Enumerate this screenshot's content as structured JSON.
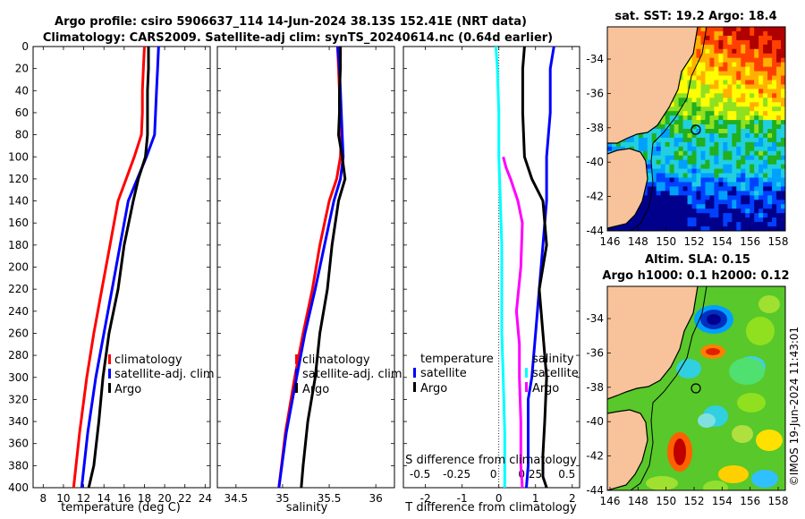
{
  "title": {
    "line1": "Argo profile: csiro 5906637_114 14-Jun-2024 38.13S 152.41E (NRT data)",
    "line2": "Climatology: CARS2009. Satellite-adj clim: synTS_20240614.nc (0.64d earlier)"
  },
  "colors": {
    "climatology": "#ff0000",
    "satellite": "#0000ff",
    "argo": "#000000",
    "t_diff_satellite": "#00ffff",
    "s_diff_argo": "#ff00ff"
  },
  "depth_axis": {
    "ticks": [
      0,
      20,
      40,
      60,
      80,
      100,
      120,
      140,
      160,
      180,
      200,
      220,
      240,
      260,
      280,
      300,
      320,
      340,
      360,
      380,
      400
    ],
    "range": [
      0,
      400
    ]
  },
  "chart_data": [
    {
      "type": "line",
      "id": "temperature",
      "xlabel": "temperature (deg C)",
      "ylabel": "",
      "xlim": [
        7,
        24.5
      ],
      "xticks": [
        8,
        10,
        12,
        14,
        16,
        18,
        20,
        22,
        24
      ],
      "ylim": [
        400,
        0
      ],
      "legend": [
        "climatology",
        "satellite-adj. clim",
        "Argo"
      ],
      "series": [
        {
          "name": "climatology",
          "color": "#ff0000",
          "x": [
            18.0,
            17.9,
            17.8,
            17.8,
            17.7,
            17.0,
            16.2,
            15.4,
            14.6,
            13.8,
            13.0,
            12.3,
            11.6,
            11.0
          ],
          "y": [
            0,
            20,
            40,
            60,
            80,
            100,
            120,
            140,
            180,
            220,
            260,
            300,
            350,
            400
          ]
        },
        {
          "name": "satellite-adj. clim",
          "color": "#0000ff",
          "x": [
            19.4,
            19.3,
            19.2,
            19.1,
            19.0,
            18.2,
            17.3,
            16.4,
            15.6,
            14.8,
            14.0,
            13.2,
            12.4,
            11.8
          ],
          "y": [
            0,
            20,
            40,
            60,
            80,
            100,
            120,
            140,
            180,
            220,
            260,
            300,
            350,
            400
          ]
        },
        {
          "name": "Argo",
          "color": "#000000",
          "x": [
            18.4,
            18.4,
            18.3,
            18.3,
            18.3,
            18.1,
            17.4,
            16.9,
            16.0,
            15.4,
            14.5,
            13.9,
            13.5,
            13.0,
            12.5
          ],
          "y": [
            0,
            20,
            40,
            60,
            80,
            100,
            120,
            140,
            180,
            220,
            260,
            300,
            340,
            380,
            400
          ]
        }
      ]
    },
    {
      "type": "line",
      "id": "salinity",
      "xlabel": "salinity",
      "ylabel": "",
      "xlim": [
        34.3,
        36.2
      ],
      "xticks": [
        34.5,
        35,
        35.5,
        36
      ],
      "ylim": [
        400,
        0
      ],
      "legend": [
        "climatology",
        "satellite-adj. clim",
        "Argo"
      ],
      "series": [
        {
          "name": "climatology",
          "color": "#ff0000",
          "x": [
            35.59,
            35.6,
            35.61,
            35.62,
            35.63,
            35.62,
            35.58,
            35.5,
            35.4,
            35.32,
            35.22,
            35.13,
            35.03,
            34.96
          ],
          "y": [
            0,
            20,
            40,
            60,
            80,
            100,
            120,
            140,
            180,
            220,
            260,
            300,
            350,
            400
          ]
        },
        {
          "name": "satellite-adj. clim",
          "color": "#0000ff",
          "x": [
            35.59,
            35.61,
            35.62,
            35.63,
            35.64,
            35.65,
            35.62,
            35.55,
            35.45,
            35.35,
            35.24,
            35.15,
            35.04,
            34.96
          ],
          "y": [
            0,
            20,
            40,
            60,
            80,
            100,
            120,
            140,
            180,
            220,
            260,
            300,
            350,
            400
          ]
        },
        {
          "name": "Argo",
          "color": "#000000",
          "x": [
            35.62,
            35.62,
            35.61,
            35.61,
            35.6,
            35.64,
            35.67,
            35.6,
            35.53,
            35.48,
            35.4,
            35.35,
            35.27,
            35.22,
            35.2
          ],
          "y": [
            0,
            20,
            40,
            60,
            80,
            100,
            120,
            140,
            180,
            220,
            260,
            300,
            340,
            380,
            400
          ]
        }
      ]
    },
    {
      "type": "line",
      "id": "difference",
      "xlabel": "T difference from climatology",
      "x2label": "S difference from climatology",
      "xlim": [
        -2.6,
        2.2
      ],
      "xticks": [
        -2,
        -1,
        0,
        1,
        2
      ],
      "x2ticks": [
        -0.5,
        -0.25,
        0,
        0.25,
        0.5
      ],
      "x2lim": [
        -0.65,
        0.55
      ],
      "ylim": [
        400,
        0
      ],
      "legend_left": [
        "temperature",
        "satellite",
        "Argo"
      ],
      "legend_right": [
        "salinity",
        "satellite",
        "Argo"
      ],
      "series": [
        {
          "name": "T satellite diff",
          "color": "#0000ff",
          "axis": "T",
          "x": [
            1.5,
            1.4,
            1.4,
            1.3,
            1.3,
            1.2,
            1.1,
            1.0,
            0.9,
            0.8,
            0.8,
            0.8,
            0.75
          ],
          "y": [
            0,
            20,
            60,
            100,
            140,
            180,
            220,
            260,
            300,
            320,
            350,
            380,
            400
          ]
        },
        {
          "name": "T Argo diff",
          "color": "#000000",
          "axis": "T",
          "x": [
            0.7,
            0.65,
            0.65,
            0.7,
            0.9,
            1.2,
            1.3,
            1.1,
            1.2,
            1.3,
            1.25,
            1.2,
            1.2,
            1.3
          ],
          "y": [
            0,
            20,
            60,
            100,
            120,
            140,
            180,
            220,
            260,
            300,
            340,
            370,
            390,
            400
          ]
        },
        {
          "name": "S satellite diff",
          "color": "#00ffff",
          "axis": "S",
          "x": [
            -0.02,
            -0.01,
            0.0,
            0.0,
            0.01,
            0.02,
            0.02,
            0.02,
            0.03,
            0.04,
            0.04
          ],
          "y": [
            0,
            20,
            60,
            100,
            140,
            180,
            220,
            260,
            300,
            350,
            400
          ]
        },
        {
          "name": "S Argo diff",
          "color": "#ff00ff",
          "axis": "S",
          "x": [
            0.03,
            0.05,
            0.08,
            0.13,
            0.16,
            0.15,
            0.12,
            0.14,
            0.14,
            0.15,
            0.15,
            0.16
          ],
          "y": [
            100,
            110,
            120,
            140,
            160,
            200,
            240,
            270,
            300,
            340,
            380,
            400
          ]
        }
      ]
    }
  ],
  "maps": [
    {
      "id": "sst",
      "title": "sat. SST: 19.2 Argo: 18.4",
      "yticks": [
        "-34",
        "-36",
        "-38",
        "-40",
        "-42",
        "-44"
      ],
      "xticks": [
        "146",
        "148",
        "150",
        "152",
        "154",
        "156",
        "158"
      ]
    },
    {
      "id": "sla",
      "title_line1": "Altim. SLA: 0.15",
      "title_line2": "Argo h1000: 0.1 h2000: 0.12",
      "yticks": [
        "-34",
        "-36",
        "-38",
        "-40",
        "-42",
        "-44"
      ],
      "xticks": [
        "146",
        "148",
        "150",
        "152",
        "154",
        "156",
        "158"
      ]
    }
  ],
  "credit": "©IMOS 19-Jun-2024 11:43:01"
}
